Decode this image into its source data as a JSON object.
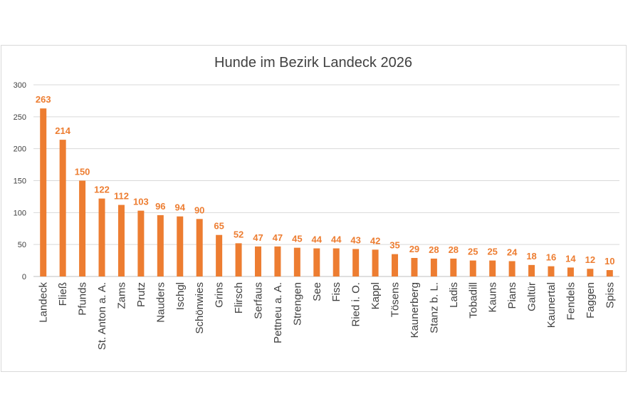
{
  "chart_data": {
    "type": "bar",
    "title": "Hunde im Bezirk Landeck 2026",
    "xlabel": "",
    "ylabel": "",
    "ylim": [
      0,
      300
    ],
    "yticks": [
      0,
      50,
      100,
      150,
      200,
      250,
      300
    ],
    "grid": true,
    "legend": "none",
    "bar_color": "#ed7d31",
    "categories": [
      "Landeck",
      "Fließ",
      "Pfunds",
      "St. Anton a. A.",
      "Zams",
      "Prutz",
      "Nauders",
      "Ischgl",
      "Schönwies",
      "Grins",
      "Flirsch",
      "Serfaus",
      "Pettneu a. A.",
      "Strengen",
      "See",
      "Fiss",
      "Ried i. O.",
      "Kappl",
      "Tösens",
      "Kaunerberg",
      "Stanz b. L.",
      "Ladis",
      "Tobadill",
      "Kauns",
      "Pians",
      "Galtür",
      "Kaunertal",
      "Fendels",
      "Faggen",
      "Spiss"
    ],
    "values": [
      263,
      214,
      150,
      122,
      112,
      103,
      96,
      94,
      90,
      65,
      52,
      47,
      47,
      45,
      44,
      44,
      43,
      42,
      35,
      29,
      28,
      28,
      25,
      25,
      24,
      18,
      16,
      14,
      12,
      10
    ]
  }
}
